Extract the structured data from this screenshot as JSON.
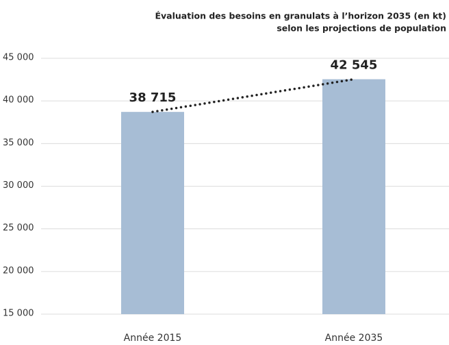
{
  "chart_data": {
    "type": "bar",
    "title_lines": [
      "Évaluation des besoins en granulats à l’horizon 2035 (en kt)",
      "selon les projections de population"
    ],
    "categories": [
      "Année 2015",
      "Année 2035"
    ],
    "values": [
      38715,
      42545
    ],
    "value_labels": [
      "38 715",
      "42 545"
    ],
    "color": "#a7bdd5",
    "trend_line": true,
    "ylim": [
      15000,
      45000
    ],
    "yticks": [
      {
        "value": 15000,
        "label": "15 000"
      },
      {
        "value": 20000,
        "label": "20 000"
      },
      {
        "value": 25000,
        "label": "25 000"
      },
      {
        "value": 30000,
        "label": "30 000"
      },
      {
        "value": 35000,
        "label": "35 000"
      },
      {
        "value": 40000,
        "label": "40 000"
      },
      {
        "value": 45000,
        "label": "45 000"
      }
    ],
    "grid": true
  }
}
